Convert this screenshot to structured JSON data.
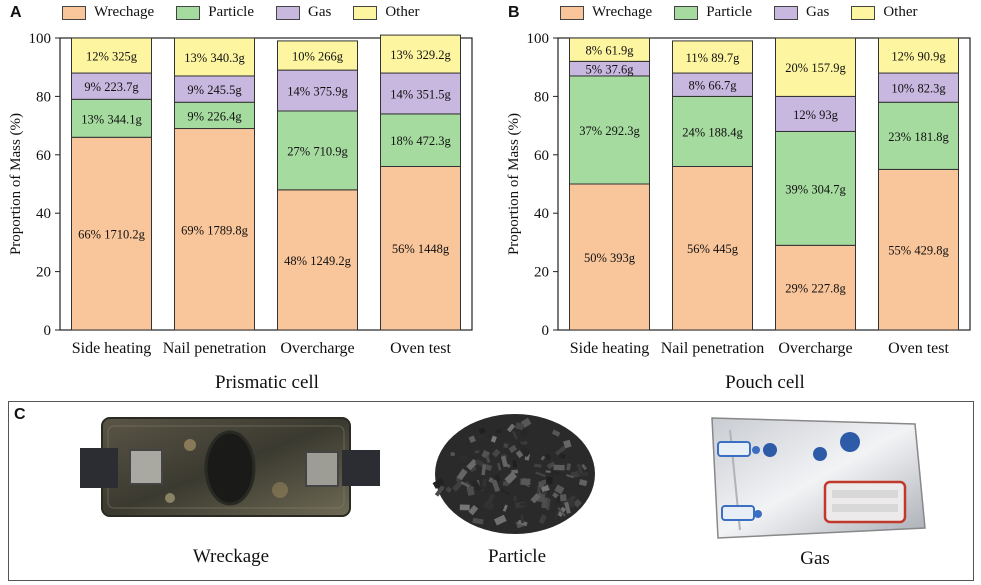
{
  "panels": {
    "A": "A",
    "B": "B",
    "C": "C"
  },
  "legend": [
    {
      "label": "Wrechage",
      "color": "#F9C59A"
    },
    {
      "label": "Particle",
      "color": "#A6DBA0"
    },
    {
      "label": "Gas",
      "color": "#C8B7DF"
    },
    {
      "label": "Other",
      "color": "#FDF5A0"
    }
  ],
  "chart_data": [
    {
      "type": "bar",
      "stacked": true,
      "title": "Prismatic cell",
      "ylabel": "Proportion of  Mass (%)",
      "ylim": [
        0,
        100
      ],
      "yticks": [
        0,
        20,
        40,
        60,
        80,
        100
      ],
      "categories": [
        "Side heating",
        "Nail penetration",
        "Overcharge",
        "Oven test"
      ],
      "series": [
        {
          "name": "Wrechage",
          "values": [
            66,
            69,
            48,
            56
          ],
          "labels": [
            "66% 1710.2g",
            "69% 1789.8g",
            "48% 1249.2g",
            "56% 1448g"
          ]
        },
        {
          "name": "Particle",
          "values": [
            13,
            9,
            27,
            18
          ],
          "labels": [
            "13% 344.1g",
            "9% 226.4g",
            "27% 710.9g",
            "18% 472.3g"
          ]
        },
        {
          "name": "Gas",
          "values": [
            9,
            9,
            14,
            14
          ],
          "labels": [
            "9% 223.7g",
            "9% 245.5g",
            "14% 375.9g",
            "14% 351.5g"
          ]
        },
        {
          "name": "Other",
          "values": [
            12,
            13,
            10,
            13
          ],
          "labels": [
            "12% 325g",
            "13% 340.3g",
            "10% 266g",
            "13% 329.2g"
          ]
        }
      ]
    },
    {
      "type": "bar",
      "stacked": true,
      "title": "Pouch cell",
      "ylabel": "Proportion of Mass (%)",
      "ylim": [
        0,
        100
      ],
      "yticks": [
        0,
        20,
        40,
        60,
        80,
        100
      ],
      "categories": [
        "Side heating",
        "Nail penetration",
        "Overcharge",
        "Oven test"
      ],
      "series": [
        {
          "name": "Wrechage",
          "values": [
            50,
            56,
            29,
            55
          ],
          "labels": [
            "50% 393g",
            "56% 445g",
            "29% 227.8g",
            "55% 429.8g"
          ]
        },
        {
          "name": "Particle",
          "values": [
            37,
            24,
            39,
            23
          ],
          "labels": [
            "37% 292.3g",
            "24% 188.4g",
            "39% 304.7g",
            "23% 181.8g"
          ]
        },
        {
          "name": "Gas",
          "values": [
            5,
            8,
            12,
            10
          ],
          "labels": [
            "5% 37.6g",
            "8% 66.7g",
            "12% 93g",
            "10% 82.3g"
          ]
        },
        {
          "name": "Other",
          "values": [
            8,
            11,
            20,
            12
          ],
          "labels": [
            "8% 61.9g",
            "11% 89.7g",
            "20% 157.9g",
            "12% 90.9g"
          ]
        }
      ]
    }
  ],
  "photos": [
    {
      "caption": "Wreckage",
      "icon": "wreckage-photo"
    },
    {
      "caption": "Particle",
      "icon": "particle-photo"
    },
    {
      "caption": "Gas",
      "icon": "gas-bag-photo"
    }
  ]
}
